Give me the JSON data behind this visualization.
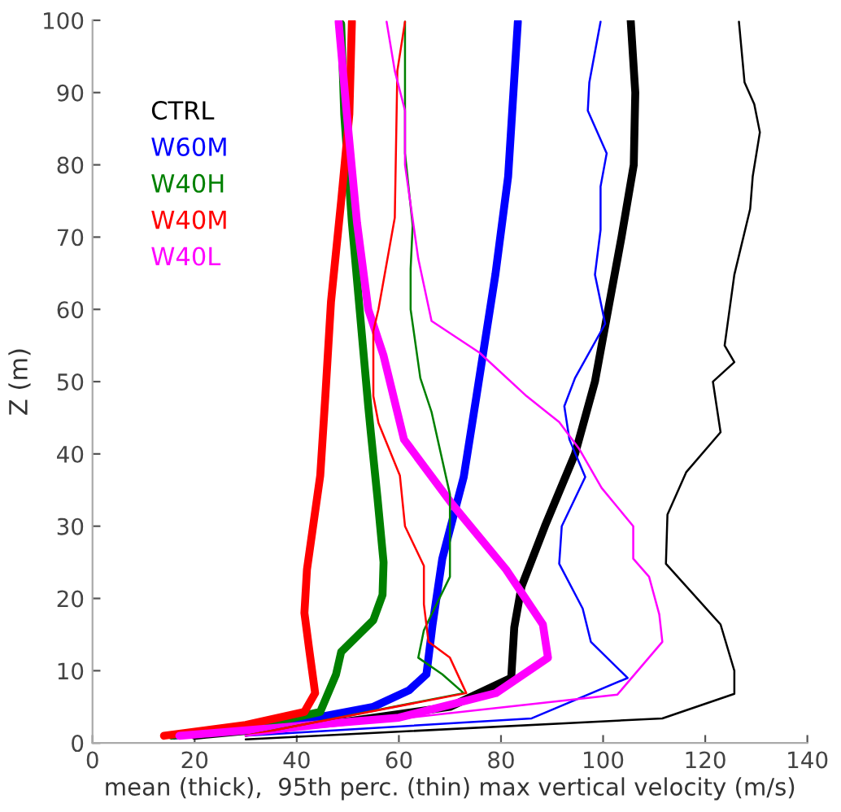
{
  "chart_data": {
    "type": "line",
    "xlabel": "mean (thick),  95th perc. (thin) max vertical velocity (m/s)",
    "ylabel": "Z (m)",
    "xlim": [
      0,
      140
    ],
    "xticks": [
      0,
      20,
      40,
      60,
      80,
      100,
      120,
      140
    ],
    "ylim": [
      0,
      100
    ],
    "yticks": [
      0,
      10,
      20,
      30,
      40,
      50,
      60,
      70,
      80,
      90,
      100
    ],
    "grid": false,
    "legend": "top left",
    "marker": "none",
    "line_style": "solid",
    "series": [
      {
        "name": "CTRL",
        "color": "#000000",
        "x": [
          20,
          50,
          70,
          82,
          82.6,
          84,
          88.6,
          94.5,
          98.4,
          101,
          103.6,
          106,
          106.3,
          105.4
        ],
        "values": [
          1,
          3,
          5,
          9,
          16,
          21.6,
          30,
          40,
          50,
          60,
          70,
          80,
          90,
          100
        ]
      },
      {
        "name": "W60M",
        "color": "#0000ff",
        "x": [
          16,
          40,
          55,
          62,
          65.4,
          66.6,
          68.5,
          72.7,
          75.2,
          78.9,
          81.4,
          83.3
        ],
        "values": [
          1,
          3,
          5,
          7.3,
          9.5,
          16.4,
          25.5,
          36.8,
          48,
          64.8,
          78.4,
          99.8
        ]
      },
      {
        "name": "W40H",
        "color": "#008000",
        "x": [
          15.5,
          33,
          44.6,
          47.7,
          48.7,
          55,
          56.8,
          57,
          55.8,
          54.5,
          54,
          50.8,
          49.3,
          48.7
        ],
        "values": [
          1,
          2.5,
          4.3,
          9.5,
          12.6,
          17,
          20.5,
          25,
          34,
          43,
          46.6,
          72,
          87,
          99.5
        ]
      },
      {
        "name": "W40M",
        "color": "#ff0000",
        "x": [
          14,
          30,
          41.5,
          43.6,
          42.5,
          41.5,
          42,
          44.6,
          45.6,
          46.7,
          48.7,
          50.3,
          50.8
        ],
        "values": [
          1,
          2.5,
          4.3,
          6.9,
          12.6,
          18,
          24,
          37,
          48,
          61,
          75,
          87,
          99.8
        ]
      },
      {
        "name": "W40L",
        "color": "#ff00ff",
        "x": [
          17,
          60,
          79,
          89.2,
          88.2,
          81,
          70.5,
          61,
          57,
          54,
          51.8,
          49.8,
          48.2
        ],
        "values": [
          1,
          3.5,
          6.9,
          11.8,
          16.4,
          24,
          33,
          42,
          53.6,
          60,
          72,
          87,
          99.8
        ]
      },
      {
        "color": "#000000",
        "x": [
          30,
          111.6,
          125.7,
          125.7,
          123,
          112.3,
          112.6,
          116.3,
          123,
          121.5,
          125.7,
          123.8,
          125.7,
          128.8,
          129.3,
          130.7,
          129.6,
          127.7,
          126.6
        ],
        "values": [
          0.5,
          3.4,
          6.8,
          10,
          16.4,
          24.8,
          31.6,
          37.5,
          43,
          50,
          52.7,
          55,
          64.8,
          73.9,
          78.4,
          84.5,
          88.4,
          91.4,
          99.8
        ]
      },
      {
        "color": "#0000ff",
        "x": [
          30,
          86,
          104.8,
          97.6,
          96,
          91.4,
          91.9,
          96.5,
          93.4,
          92.4,
          94.5,
          100.4,
          98.4,
          99.5,
          99.5,
          100.7,
          97,
          97.3,
          99.5
        ],
        "values": [
          1,
          3.4,
          9,
          14,
          18.6,
          24.8,
          30,
          36.8,
          42,
          46.6,
          50.5,
          58,
          64.8,
          71,
          77,
          81.6,
          87.5,
          91.4,
          99.8
        ]
      },
      {
        "color": "#008000",
        "x": [
          30,
          72.7,
          68.5,
          63.8,
          64.9,
          70,
          70,
          66.4,
          64.2,
          62.3,
          62.3,
          62.7,
          61.2,
          61.2,
          61.2
        ],
        "values": [
          1,
          6.9,
          9.5,
          11.8,
          15.6,
          23,
          34.4,
          45.8,
          50.5,
          60,
          65.6,
          71.6,
          81.6,
          91.4,
          99.8
        ]
      },
      {
        "color": "#ff0000",
        "x": [
          30,
          73.2,
          70,
          65.8,
          64.9,
          64.9,
          61.2,
          60.2,
          56,
          55,
          55,
          56,
          59.2,
          59.7,
          61.2
        ],
        "values": [
          1,
          6.9,
          11.8,
          14,
          19.2,
          24.5,
          30,
          37,
          44.3,
          48,
          57,
          60,
          72.7,
          93,
          99.8
        ]
      },
      {
        "color": "#ff00ff",
        "x": [
          30,
          102.8,
          111.6,
          111,
          109,
          105.9,
          105.9,
          99.7,
          95.4,
          91.4,
          85,
          75.8,
          66.4,
          63.8,
          61.2,
          61.2,
          59.2,
          57.6
        ],
        "values": [
          1,
          6.7,
          14,
          17.8,
          23,
          25.5,
          30,
          35.3,
          40.6,
          44.4,
          48,
          54,
          58.4,
          67,
          80,
          87.5,
          93,
          99.8
        ]
      }
    ]
  }
}
